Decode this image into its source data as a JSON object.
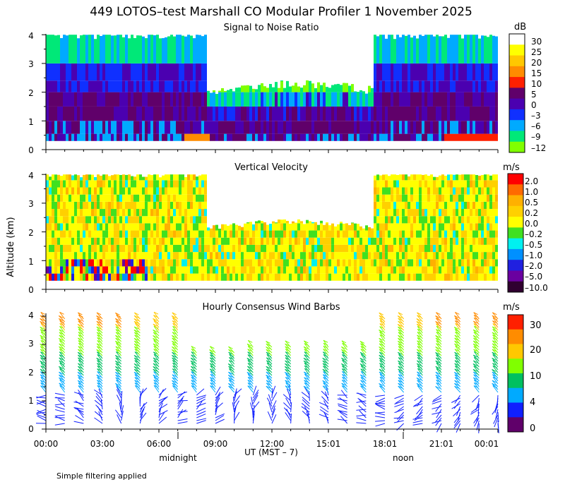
{
  "figure": {
    "title": "449 LOTOS–test Marshall CO Modular Profiler  1 November 2025",
    "ylabel": "Altitude (km)",
    "xlabel": "UT  (MST – 7)",
    "midnight_label": "midnight",
    "noon_label": "noon",
    "footnote": "Simple filtering applied"
  },
  "chart_data": [
    {
      "type": "heatmap",
      "title": "Signal to Noise Ratio",
      "unit": "dB",
      "ylim": [
        0,
        4
      ],
      "yticks": [
        "0",
        "1",
        "2",
        "3",
        "4"
      ],
      "colorbar": {
        "labels": [
          "30",
          "25",
          "20",
          "15",
          "10",
          "5",
          "0",
          "–3",
          "–6",
          "–9",
          "–12"
        ],
        "colors": [
          "#ffffff",
          "#ffff00",
          "#ffc800",
          "#ff8c00",
          "#ff2000",
          "#60006a",
          "#4b00b0",
          "#1030ff",
          "#00aaff",
          "#00e878",
          "#80ff00"
        ]
      }
    },
    {
      "type": "heatmap",
      "title": "Vertical Velocity",
      "unit": "m/s",
      "ylim": [
        0,
        4
      ],
      "yticks": [
        "0",
        "1",
        "2",
        "3",
        "4"
      ],
      "colorbar": {
        "labels": [
          "2.0",
          "1.0",
          "0.5",
          "0.2",
          "0.0",
          "–0.2",
          "–0.5",
          "–1.0",
          "–2.0",
          "–5.0",
          "–10.0"
        ],
        "colors": [
          "#ff0000",
          "#ff6a00",
          "#ffb000",
          "#ffd000",
          "#ffff00",
          "#40e020",
          "#00f0f0",
          "#0090ff",
          "#2020e0",
          "#6a00a0",
          "#300030"
        ]
      }
    },
    {
      "type": "wind_barbs",
      "title": "Hourly Consensus Wind Barbs",
      "unit": "m/s",
      "ylim": [
        0,
        4
      ],
      "yticks": [
        "0",
        "1",
        "2",
        "3",
        "4"
      ],
      "colorbar": {
        "labels": [
          "30",
          "20",
          "10",
          "4",
          "0"
        ],
        "colors": [
          "#ff2000",
          "#ff8c00",
          "#ffc800",
          "#80ff00",
          "#00c060",
          "#00aaff",
          "#1020ff",
          "#60006a"
        ]
      },
      "hours": 25,
      "low_level_directions_deg": [
        270,
        290,
        300,
        330,
        350,
        20,
        40,
        60,
        60,
        40,
        20,
        10,
        0,
        340,
        330,
        320,
        300,
        290,
        270,
        250,
        240,
        230,
        220,
        210,
        200
      ]
    }
  ],
  "x_axis": {
    "ticks": [
      "00:00",
      "03:00",
      "06:00",
      "09:00",
      "12:00",
      "15:01",
      "18:01",
      "21:01",
      "00:01"
    ]
  }
}
